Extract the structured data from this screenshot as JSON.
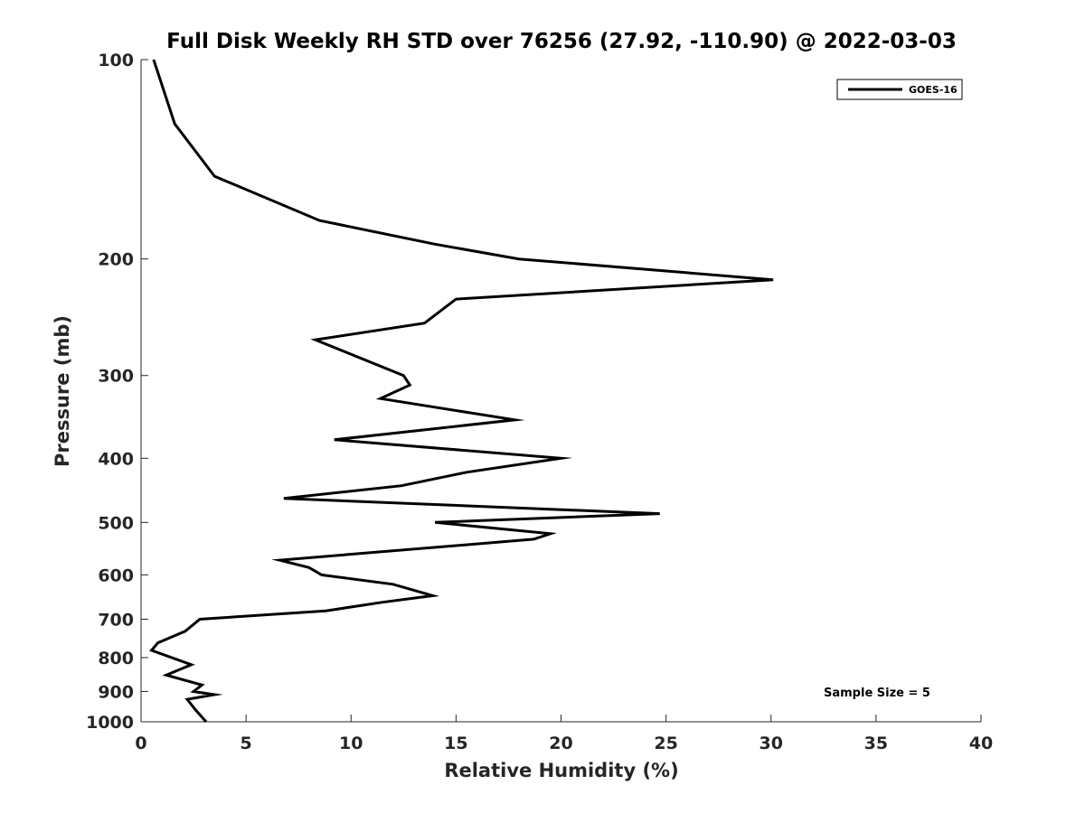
{
  "chart_data": {
    "type": "line",
    "title": "Full Disk Weekly RH STD over 76256 (27.92, -110.90) @ 2022-03-03",
    "xlabel": "Relative Humidity (%)",
    "ylabel": "Pressure (mb)",
    "xlim": [
      0,
      40
    ],
    "ylim": [
      100,
      1000
    ],
    "y_scale": "log",
    "y_reversed": true,
    "x_ticks": [
      0,
      5,
      10,
      15,
      20,
      25,
      30,
      35,
      40
    ],
    "y_ticks": [
      100,
      200,
      300,
      400,
      500,
      600,
      700,
      800,
      900,
      1000
    ],
    "grid": false,
    "legend_position": "top-right",
    "annotation": "Sample Size = 5",
    "series": [
      {
        "name": "GOES-16",
        "color": "#000000",
        "points": [
          [
            0.6,
            100
          ],
          [
            1.6,
            125
          ],
          [
            3.5,
            150
          ],
          [
            8.5,
            175
          ],
          [
            14.0,
            190
          ],
          [
            18.0,
            200
          ],
          [
            30.1,
            215
          ],
          [
            15.0,
            230
          ],
          [
            13.5,
            250
          ],
          [
            8.3,
            265
          ],
          [
            12.5,
            300
          ],
          [
            12.8,
            310
          ],
          [
            11.4,
            325
          ],
          [
            17.8,
            350
          ],
          [
            9.2,
            375
          ],
          [
            20.0,
            400
          ],
          [
            15.5,
            420
          ],
          [
            12.4,
            440
          ],
          [
            6.8,
            460
          ],
          [
            24.7,
            485
          ],
          [
            14.0,
            500
          ],
          [
            19.5,
            520
          ],
          [
            18.7,
            530
          ],
          [
            6.6,
            570
          ],
          [
            8.0,
            585
          ],
          [
            8.6,
            600
          ],
          [
            12.0,
            620
          ],
          [
            13.9,
            645
          ],
          [
            11.5,
            660
          ],
          [
            8.8,
            680
          ],
          [
            2.8,
            700
          ],
          [
            2.1,
            730
          ],
          [
            0.8,
            760
          ],
          [
            0.5,
            780
          ],
          [
            2.4,
            820
          ],
          [
            1.2,
            850
          ],
          [
            2.9,
            880
          ],
          [
            2.5,
            900
          ],
          [
            3.5,
            910
          ],
          [
            2.2,
            925
          ],
          [
            2.6,
            960
          ],
          [
            3.1,
            1000
          ]
        ]
      }
    ]
  }
}
